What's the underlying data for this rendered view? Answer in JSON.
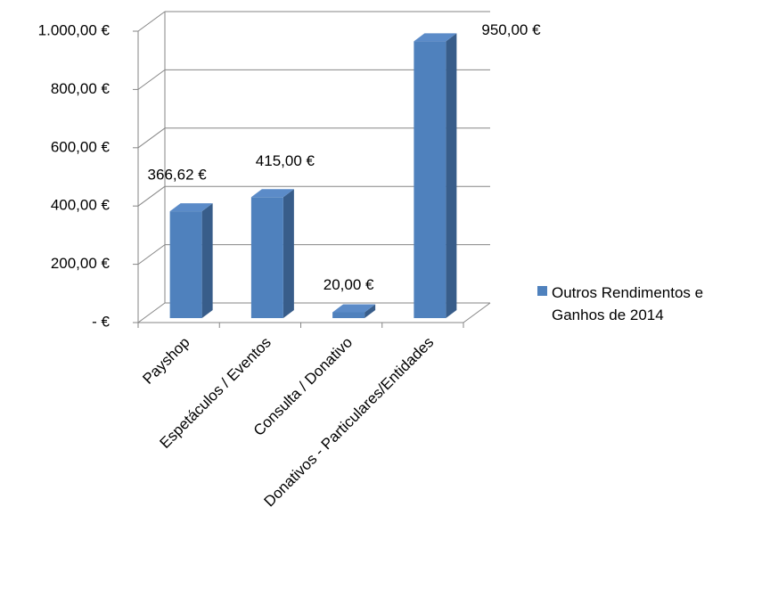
{
  "chart_data": {
    "type": "bar3d",
    "categories": [
      "Payshop",
      "Espetáculos / Eventos",
      "Consulta / Donativo",
      "Donativos - Particulares/Entidades"
    ],
    "series": [
      {
        "name": "Outros Rendimentos e Ganhos de 2014",
        "color": "#4f81bd",
        "values": [
          366.62,
          415,
          20,
          950
        ],
        "value_labels": [
          "366,62 €",
          "415,00 €",
          "20,00 €",
          "950,00 €"
        ]
      }
    ],
    "ylim": [
      0,
      1000
    ],
    "yticks": [
      {
        "value": 0,
        "label": "-   €"
      },
      {
        "value": 200,
        "label": "200,00 €"
      },
      {
        "value": 400,
        "label": "400,00 €"
      },
      {
        "value": 600,
        "label": "600,00 €"
      },
      {
        "value": 800,
        "label": "800,00 €"
      },
      {
        "value": 1000,
        "label": "1.000,00 €"
      }
    ],
    "grid": true,
    "legend": "right"
  }
}
